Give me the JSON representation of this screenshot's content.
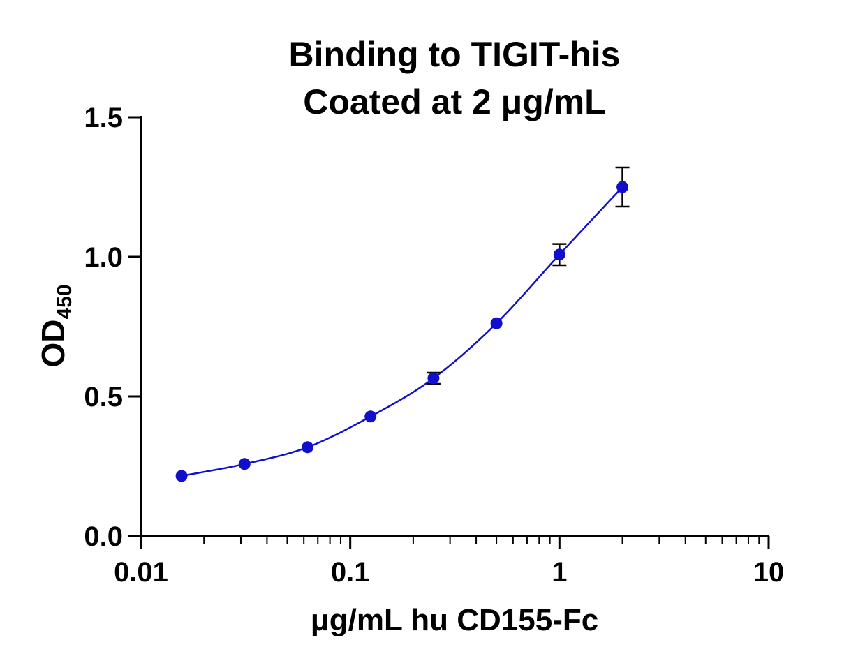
{
  "chart_data": {
    "type": "scatter",
    "title_line1": "Binding to TIGIT-his",
    "title_line2": "Coated at 2 μg/mL",
    "xlabel": "μg/mL hu CD155-Fc",
    "ylabel_main": "OD",
    "ylabel_sub": "450",
    "x_scale": "log",
    "xlim": [
      0.01,
      10
    ],
    "ylim": [
      0,
      1.5
    ],
    "x_ticks": [
      {
        "value": 0.01,
        "label": "0.01"
      },
      {
        "value": 0.1,
        "label": "0.1"
      },
      {
        "value": 1,
        "label": "1"
      },
      {
        "value": 10,
        "label": "10"
      }
    ],
    "y_ticks": [
      {
        "value": 0.0,
        "label": "0.0"
      },
      {
        "value": 0.5,
        "label": "0.5"
      },
      {
        "value": 1.0,
        "label": "1.0"
      },
      {
        "value": 1.5,
        "label": "1.5"
      }
    ],
    "grid": false,
    "series": [
      {
        "color": "#1010cc",
        "fit": "sigmoidal curve",
        "points": [
          {
            "x": 0.015625,
            "y": 0.215,
            "err": 0.0
          },
          {
            "x": 0.03125,
            "y": 0.258,
            "err": 0.0
          },
          {
            "x": 0.0625,
            "y": 0.318,
            "err": 0.0
          },
          {
            "x": 0.125,
            "y": 0.428,
            "err": 0.0
          },
          {
            "x": 0.25,
            "y": 0.565,
            "err": 0.02
          },
          {
            "x": 0.5,
            "y": 0.762,
            "err": 0.0
          },
          {
            "x": 1.0,
            "y": 1.008,
            "err": 0.038
          },
          {
            "x": 2.0,
            "y": 1.25,
            "err": 0.07
          }
        ]
      }
    ]
  }
}
